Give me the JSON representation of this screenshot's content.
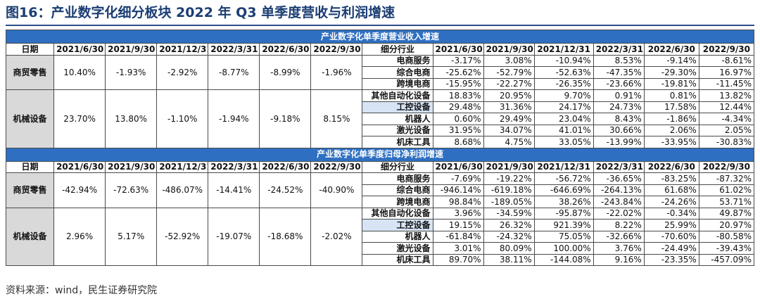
{
  "title": "图16：产业数字化细分板块 2022 年 Q3 单季度营收与利润增速",
  "source": "资料来源：wind，民生证券研究院",
  "sections": [
    {
      "banner": "产业数字化单季度营业收入增速",
      "header": {
        "left_label": "日期",
        "seg_label": "细分行业",
        "dates": [
          "2021/6/30",
          "2021/9/30",
          "2021/12/31",
          "2022/3/31",
          "2022/6/30",
          "2022/9/30"
        ]
      },
      "groups": [
        {
          "name": "商贸零售",
          "left_values": [
            "10.40%",
            "-1.93%",
            "-2.92%",
            "-8.77%",
            "-8.99%",
            "-1.96%"
          ],
          "segments": [
            {
              "name": "电商服务",
              "values": [
                "-3.17%",
                "3.08%",
                "-10.94%",
                "8.53%",
                "-9.14%",
                "-8.61%"
              ]
            },
            {
              "name": "综合电商",
              "values": [
                "-25.62%",
                "-52.79%",
                "-52.63%",
                "-47.35%",
                "-29.30%",
                "16.97%"
              ]
            },
            {
              "name": "跨境电商",
              "values": [
                "-15.95%",
                "-22.27%",
                "-26.35%",
                "-23.66%",
                "-19.81%",
                "-11.45%"
              ]
            }
          ]
        },
        {
          "name": "机械设备",
          "left_values": [
            "23.70%",
            "13.80%",
            "-1.10%",
            "-1.94%",
            "-9.18%",
            "8.15%"
          ],
          "segments": [
            {
              "name": "其他自动化设备",
              "values": [
                "18.83%",
                "20.95%",
                "9.70%",
                "0.91%",
                "0.81%",
                "13.82%"
              ]
            },
            {
              "name": "工控设备",
              "values": [
                "29.48%",
                "31.36%",
                "24.17%",
                "24.73%",
                "17.58%",
                "12.44%"
              ]
            },
            {
              "name": "机器人",
              "values": [
                "0.60%",
                "29.49%",
                "23.04%",
                "8.43%",
                "-1.86%",
                "-4.34%"
              ]
            },
            {
              "name": "激光设备",
              "values": [
                "31.95%",
                "34.07%",
                "41.01%",
                "30.66%",
                "2.06%",
                "2.05%"
              ]
            },
            {
              "name": "机床工具",
              "values": [
                "8.68%",
                "4.75%",
                "33.05%",
                "-13.99%",
                "-33.95%",
                "-30.83%"
              ]
            }
          ]
        }
      ]
    },
    {
      "banner": "产业数字化单季度归母净利润增速",
      "header": {
        "left_label": "日期",
        "seg_label": "细分行业",
        "dates": [
          "2021/6/30",
          "2021/9/30",
          "2021/12/31",
          "2022/3/31",
          "2022/6/30",
          "2022/9/30"
        ]
      },
      "groups": [
        {
          "name": "商贸零售",
          "left_values": [
            "-42.94%",
            "-72.63%",
            "-486.07%",
            "-14.41%",
            "-24.52%",
            "-40.90%"
          ],
          "segments": [
            {
              "name": "电商服务",
              "values": [
                "-7.69%",
                "-19.22%",
                "-56.72%",
                "-36.65%",
                "-83.25%",
                "-87.32%"
              ]
            },
            {
              "name": "综合电商",
              "values": [
                "-946.14%",
                "-619.18%",
                "-646.69%",
                "-264.13%",
                "61.68%",
                "61.02%"
              ]
            },
            {
              "name": "跨境电商",
              "values": [
                "98.84%",
                "-189.05%",
                "38.26%",
                "-243.84%",
                "-24.26%",
                "53.71%"
              ]
            }
          ]
        },
        {
          "name": "机械设备",
          "left_values": [
            "2.96%",
            "5.17%",
            "-52.92%",
            "-19.07%",
            "-18.68%",
            "-2.02%"
          ],
          "segments": [
            {
              "name": "其他自动化设备",
              "values": [
                "3.96%",
                "-34.59%",
                "-95.87%",
                "-22.02%",
                "-0.34%",
                "49.87%"
              ]
            },
            {
              "name": "工控设备",
              "values": [
                "19.15%",
                "26.32%",
                "921.39%",
                "8.22%",
                "25.99%",
                "20.97%"
              ]
            },
            {
              "name": "机器人",
              "values": [
                "-61.84%",
                "-24.32%",
                "75.05%",
                "-32.66%",
                "-70.60%",
                "-80.58%"
              ]
            },
            {
              "name": "激光设备",
              "values": [
                "3.01%",
                "80.09%",
                "100.00%",
                "3.76%",
                "-24.49%",
                "-39.43%"
              ]
            },
            {
              "name": "机床工具",
              "values": [
                "89.70%",
                "38.11%",
                "-144.08%",
                "9.16%",
                "-23.35%",
                "-457.09%"
              ]
            }
          ]
        }
      ]
    }
  ]
}
